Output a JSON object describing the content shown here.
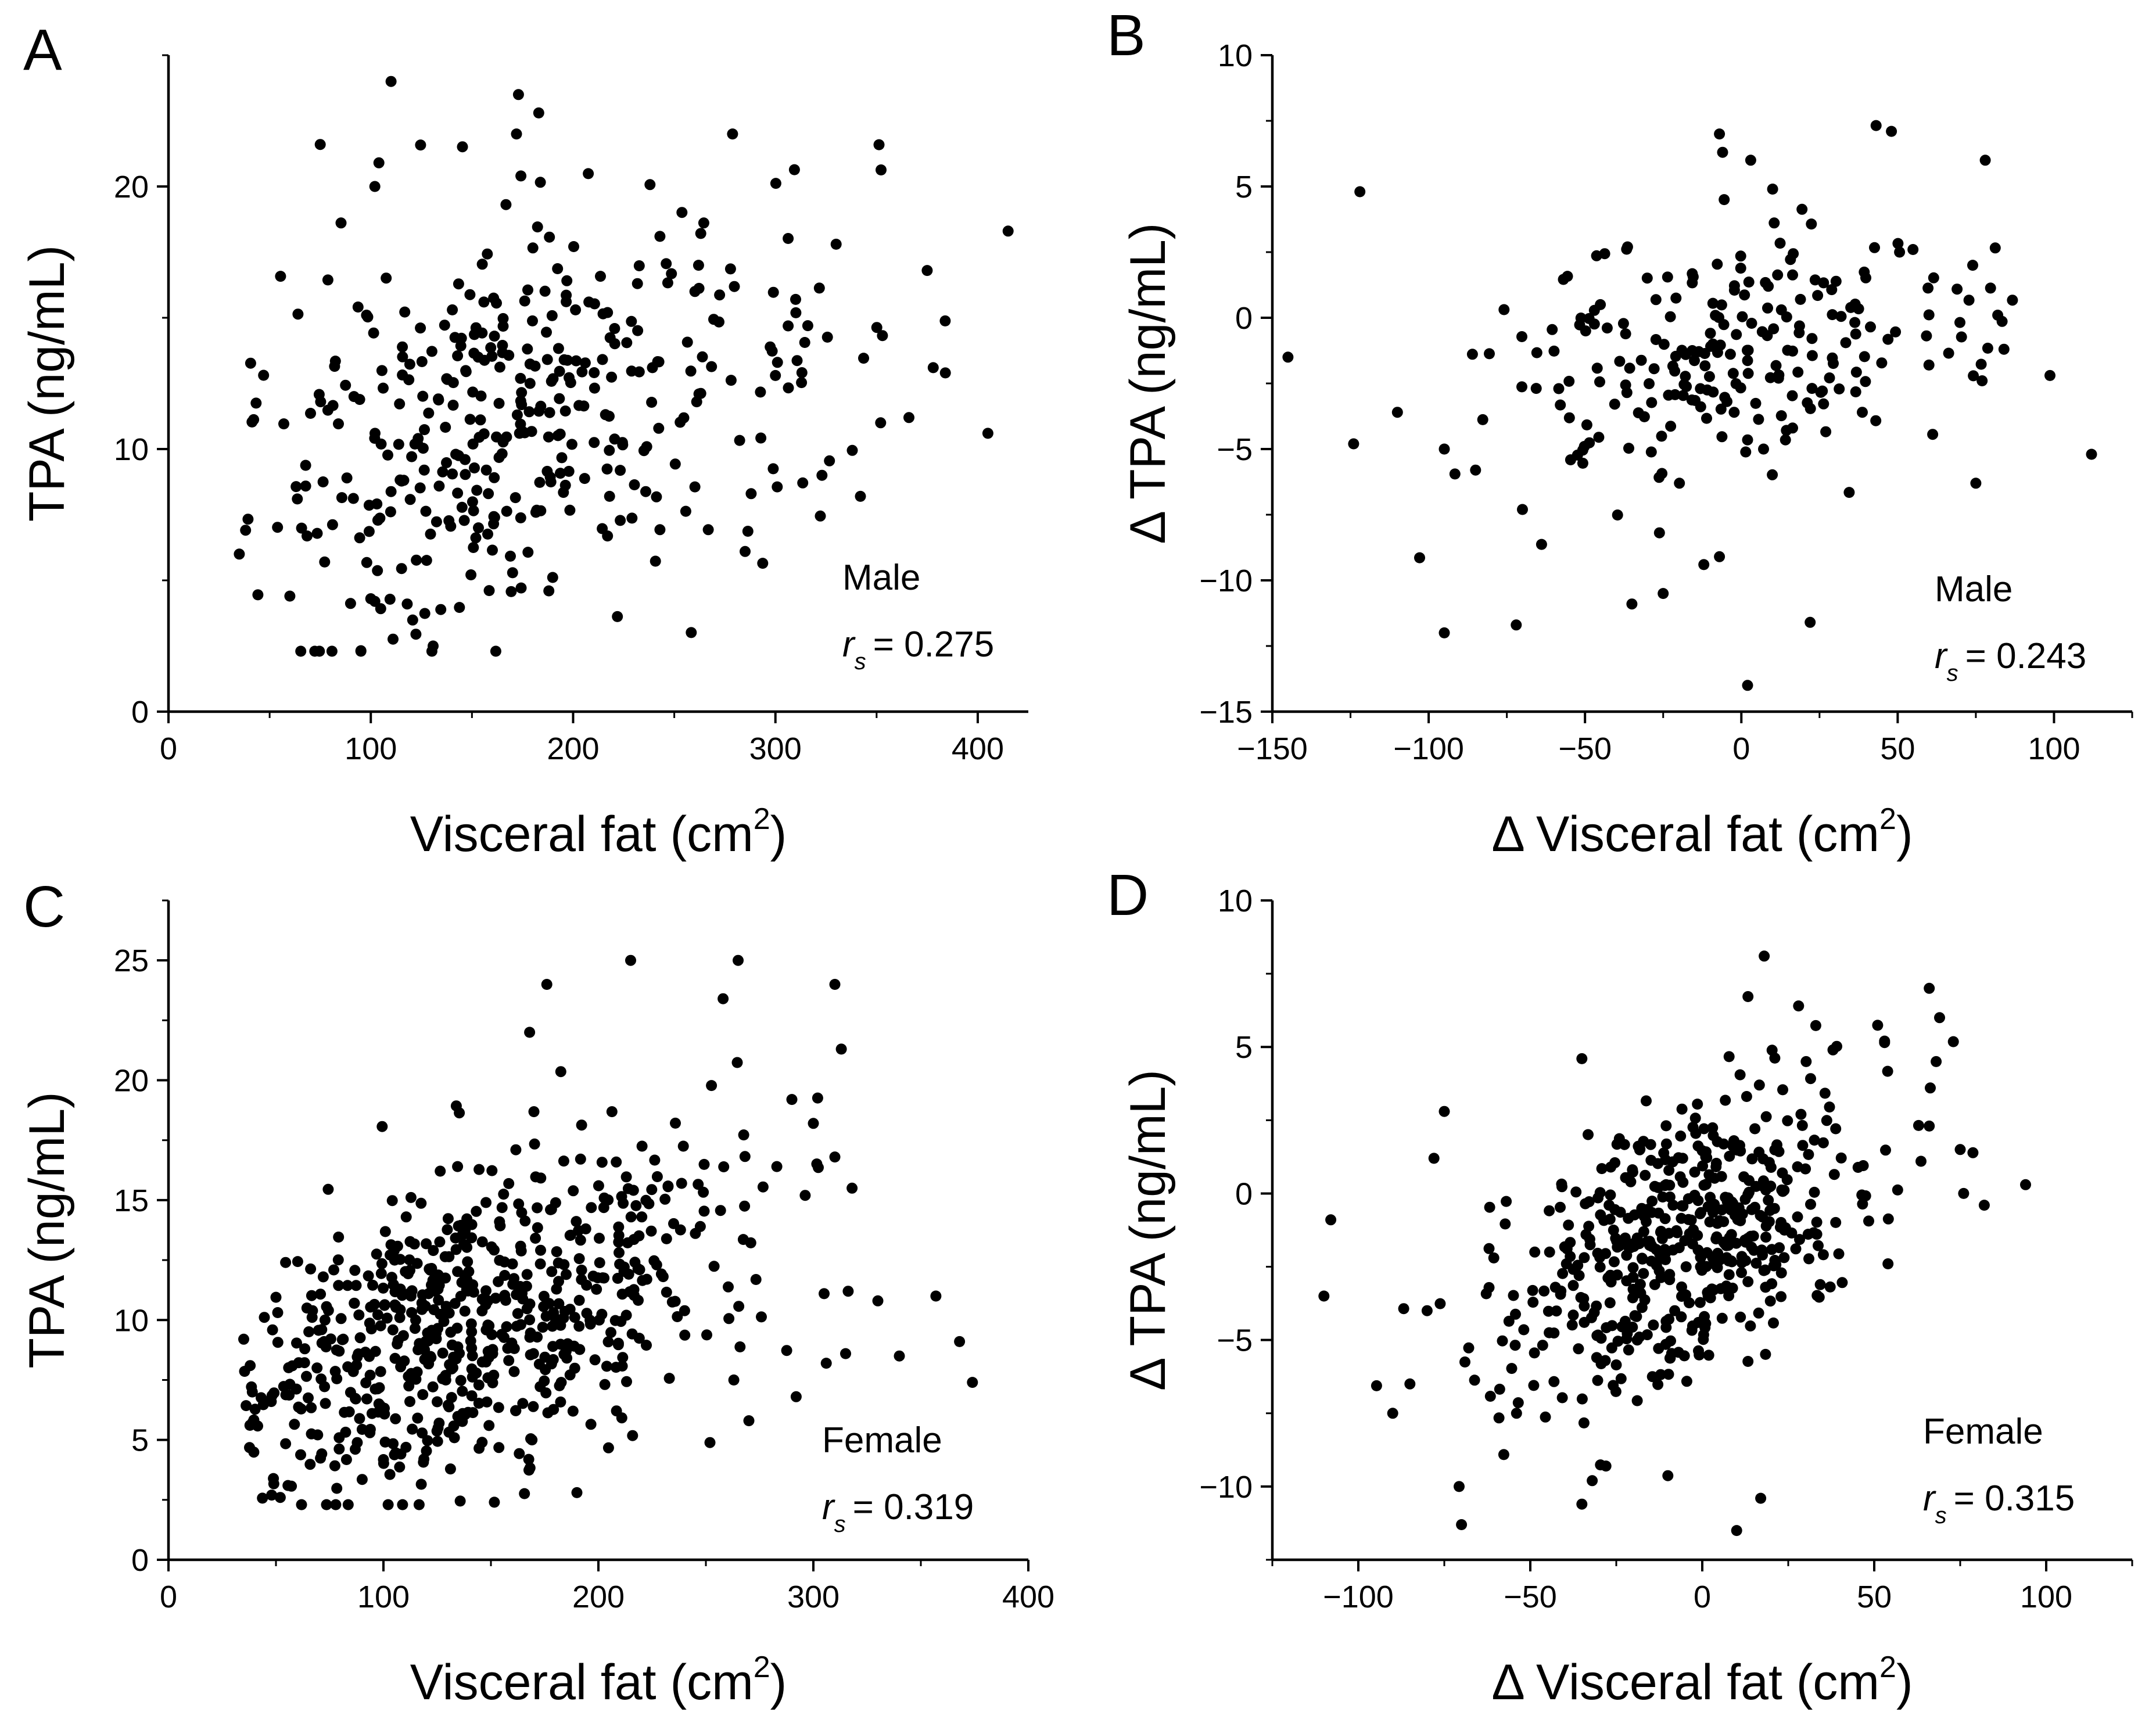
{
  "chart_data": [
    {
      "panel": "A",
      "type": "scatter",
      "xlabel": "Visceral fat (cm",
      "xlabel_sup": "2",
      "xlabel_end": ")",
      "ylabel": "TPA (ng/mL)",
      "xlim": [
        0,
        425
      ],
      "ylim": [
        0,
        25
      ],
      "xticks": [
        0,
        100,
        200,
        300,
        400
      ],
      "yticks": [
        0,
        10,
        20
      ],
      "group_label": "Male",
      "stat_symbol": "r",
      "stat_sub": "s",
      "stat_value": "= 0.275",
      "gen": {
        "n": 380,
        "seed": 11,
        "type": "pos",
        "xmean": 165,
        "xsd": 62,
        "xskew": 1.0,
        "ymean": 11.2,
        "slope": 0.022,
        "ysd": 3.6
      },
      "points": [
        [
          35,
          6.0
        ],
        [
          60,
          4.4
        ],
        [
          75,
          21.6
        ],
        [
          100,
          4.3
        ],
        [
          102,
          20.0
        ],
        [
          104,
          20.9
        ],
        [
          110,
          24.0
        ],
        [
          118,
          4.1
        ],
        [
          172,
          22.0
        ],
        [
          173,
          23.5
        ],
        [
          183,
          22.8
        ],
        [
          188,
          4.6
        ],
        [
          262,
          17.0
        ],
        [
          285,
          6.1
        ],
        [
          288,
          8.3
        ],
        [
          330,
          17.8
        ],
        [
          342,
          8.2
        ],
        [
          375,
          16.8
        ],
        [
          378,
          13.1
        ],
        [
          384,
          12.9
        ],
        [
          405,
          10.6
        ],
        [
          415,
          18.3
        ],
        [
          352,
          11.0
        ],
        [
          366,
          11.2
        ],
        [
          323,
          9.0
        ],
        [
          301,
          13.3
        ],
        [
          300,
          12.8
        ],
        [
          310,
          15.7
        ],
        [
          316,
          14.7
        ]
      ]
    },
    {
      "panel": "B",
      "type": "scatter",
      "xlabel": "Δ Visceral fat (cm",
      "xlabel_sup": "2",
      "xlabel_end": ")",
      "ylabel": "Δ TPA (ng/mL)",
      "xlim": [
        -150,
        125
      ],
      "ylim": [
        -15,
        10
      ],
      "xticks": [
        -150,
        -100,
        -50,
        0,
        50,
        100
      ],
      "yticks": [
        -15,
        -10,
        -5,
        0,
        5,
        10
      ],
      "group_label": "Male",
      "stat_symbol": "r",
      "stat_sub": "s",
      "stat_value": "= 0.243",
      "gen": {
        "n": 230,
        "seed": 23,
        "type": "delta",
        "xmean": -5,
        "xsd": 38,
        "ymean": -1.6,
        "slope": 0.022,
        "ysd": 2.4
      },
      "points": [
        [
          -145,
          -1.5
        ],
        [
          -122,
          4.8
        ],
        [
          -124,
          -4.8
        ],
        [
          -95,
          -12.0
        ],
        [
          -72,
          -11.7
        ],
        [
          -35,
          -10.9
        ],
        [
          -25,
          -10.5
        ],
        [
          -12,
          -9.4
        ],
        [
          -7,
          -9.1
        ],
        [
          2,
          -14.0
        ],
        [
          22,
          -11.6
        ],
        [
          -7,
          7.0
        ],
        [
          -6,
          6.3
        ],
        [
          3,
          6.0
        ],
        [
          10,
          4.9
        ],
        [
          48,
          7.1
        ],
        [
          78,
          6.0
        ],
        [
          112,
          -5.2
        ],
        [
          84,
          -1.2
        ],
        [
          82,
          0.1
        ],
        [
          75,
          -6.3
        ],
        [
          74,
          2.0
        ],
        [
          77,
          -2.4
        ],
        [
          60,
          -1.8
        ],
        [
          -95,
          -5.0
        ],
        [
          -110,
          -3.6
        ],
        [
          -85,
          -5.8
        ],
        [
          -70,
          -7.3
        ]
      ]
    },
    {
      "panel": "C",
      "type": "scatter",
      "xlabel": "Visceral fat (cm",
      "xlabel_sup": "2",
      "xlabel_end": ")",
      "ylabel": "TPA (ng/mL)",
      "xlim": [
        0,
        400
      ],
      "ylim": [
        0,
        27.5
      ],
      "xticks": [
        0,
        100,
        200,
        300,
        400
      ],
      "yticks": [
        0,
        5,
        10,
        15,
        20,
        25
      ],
      "group_label": "Female",
      "stat_symbol": "r",
      "stat_sub": "s",
      "stat_value": "= 0.319",
      "gen": {
        "n": 640,
        "seed": 37,
        "type": "pos",
        "xmean": 140,
        "xsd": 52,
        "xskew": 1.0,
        "ymean": 9.8,
        "slope": 0.03,
        "ysd": 3.1
      },
      "points": [
        [
          35,
          9.2
        ],
        [
          38,
          8.1
        ],
        [
          45,
          6.6
        ],
        [
          48,
          2.7
        ],
        [
          52,
          2.6
        ],
        [
          215,
          25.0
        ],
        [
          265,
          25.0
        ],
        [
          258,
          23.4
        ],
        [
          310,
          24.0
        ],
        [
          313,
          21.3
        ],
        [
          315,
          8.6
        ],
        [
          318,
          15.5
        ],
        [
          330,
          10.8
        ],
        [
          340,
          8.5
        ],
        [
          357,
          11.0
        ],
        [
          368,
          9.1
        ],
        [
          374,
          7.4
        ],
        [
          176,
          24.0
        ],
        [
          168,
          22.0
        ],
        [
          190,
          2.8
        ],
        [
          300,
          18.2
        ],
        [
          306,
          8.2
        ],
        [
          305,
          11.1
        ],
        [
          310,
          16.8
        ],
        [
          290,
          19.2
        ],
        [
          283,
          16.4
        ],
        [
          263,
          7.5
        ],
        [
          270,
          5.8
        ],
        [
          292,
          6.8
        ]
      ]
    },
    {
      "panel": "D",
      "type": "scatter",
      "xlabel": "Δ Visceral fat (cm",
      "xlabel_sup": "2",
      "xlabel_end": ")",
      "ylabel": "Δ TPA (ng/mL)",
      "xlim": [
        -125,
        125
      ],
      "ylim": [
        -12.5,
        10
      ],
      "xticks": [
        -100,
        -50,
        0,
        50,
        100
      ],
      "yticks": [
        -10,
        -5,
        0,
        5,
        10
      ],
      "group_label": "Female",
      "stat_symbol": "r",
      "stat_sub": "s",
      "stat_value": "= 0.315",
      "gen": {
        "n": 520,
        "seed": 53,
        "type": "delta",
        "xmean": -6,
        "xsd": 26,
        "ymean": -1.6,
        "slope": 0.045,
        "ysd": 2.3
      },
      "points": [
        [
          -110,
          -3.5
        ],
        [
          -108,
          -0.9
        ],
        [
          -90,
          -7.5
        ],
        [
          -70,
          -11.3
        ],
        [
          -32,
          -9.8
        ],
        [
          -28,
          -9.3
        ],
        [
          -35,
          -10.6
        ],
        [
          10,
          -11.5
        ],
        [
          17,
          -10.4
        ],
        [
          18,
          8.1
        ],
        [
          66,
          7.0
        ],
        [
          69,
          6.0
        ],
        [
          68,
          4.5
        ],
        [
          66,
          2.3
        ],
        [
          75,
          1.5
        ],
        [
          76,
          0.0
        ],
        [
          82,
          -0.4
        ],
        [
          94,
          0.3
        ],
        [
          -75,
          2.8
        ],
        [
          -78,
          1.2
        ],
        [
          -80,
          -4.0
        ],
        [
          -85,
          -6.5
        ],
        [
          28,
          6.4
        ],
        [
          38,
          4.9
        ],
        [
          -35,
          4.6
        ]
      ]
    }
  ]
}
